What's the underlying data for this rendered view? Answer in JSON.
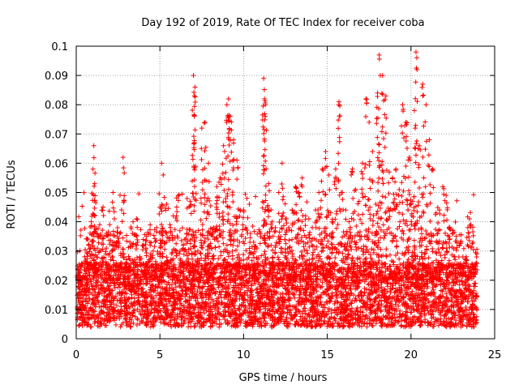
{
  "chart_data": {
    "type": "scatter",
    "title": "Day 192 of 2019, Rate Of TEC Index for receiver coba",
    "xlabel": "GPS time / hours",
    "ylabel": "ROTI / TECUs",
    "xlim": [
      0,
      25
    ],
    "ylim": [
      0,
      0.1
    ],
    "x_ticks": [
      "0",
      "5",
      "10",
      "15",
      "20",
      "25"
    ],
    "y_ticks": [
      "0",
      "0.01",
      "0.02",
      "0.03",
      "0.04",
      "0.05",
      "0.06",
      "0.07",
      "0.08",
      "0.09",
      "0.1"
    ],
    "grid": true,
    "marker": "+",
    "color": "#ff0000",
    "series": [
      {
        "x": [
          0.1,
          0.3,
          0.5,
          0.7,
          0.9,
          1.0,
          1.05,
          1.1,
          1.2,
          1.4,
          1.6,
          1.8,
          2.0,
          2.2,
          2.4,
          2.6,
          2.8,
          3.0,
          3.2,
          3.4,
          3.6,
          3.8,
          4.0,
          4.2,
          4.4,
          4.6,
          4.8,
          5.0,
          5.1,
          5.2,
          5.4,
          5.6,
          5.8,
          6.0,
          6.2,
          6.4,
          6.6,
          6.8,
          7.0,
          7.05,
          7.1,
          7.3,
          7.5,
          7.7,
          7.9,
          8.0,
          8.2,
          8.4,
          8.6,
          8.8,
          9.0,
          9.1,
          9.2,
          9.4,
          9.6,
          9.8,
          10.0,
          10.2,
          10.4,
          10.6,
          10.8,
          11.0,
          11.2,
          11.25,
          11.3,
          11.5,
          11.7,
          11.9,
          12.1,
          12.3,
          12.5,
          12.7,
          12.9,
          13.1,
          13.3,
          13.5,
          13.7,
          13.9,
          14.1,
          14.3,
          14.5,
          14.7,
          14.9,
          15.1,
          15.3,
          15.5,
          15.7,
          15.9,
          16.1,
          16.3,
          16.5,
          16.7,
          16.9,
          17.1,
          17.3,
          17.5,
          17.7,
          17.9,
          18.0,
          18.1,
          18.3,
          18.5,
          18.7,
          18.9,
          19.1,
          19.3,
          19.5,
          19.7,
          19.9,
          20.1,
          20.2,
          20.3,
          20.5,
          20.7,
          20.9,
          21.1,
          21.3,
          21.5,
          21.7,
          21.9,
          22.1,
          22.3,
          22.5,
          22.7,
          22.9,
          23.1,
          23.3,
          23.5,
          23.7,
          23.9
        ],
        "y": [
          0.02,
          0.016,
          0.028,
          0.034,
          0.04,
          0.058,
          0.066,
          0.053,
          0.036,
          0.039,
          0.045,
          0.031,
          0.039,
          0.05,
          0.033,
          0.036,
          0.062,
          0.027,
          0.033,
          0.04,
          0.041,
          0.028,
          0.032,
          0.035,
          0.033,
          0.03,
          0.038,
          0.045,
          0.06,
          0.056,
          0.046,
          0.039,
          0.042,
          0.045,
          0.03,
          0.032,
          0.036,
          0.047,
          0.09,
          0.076,
          0.086,
          0.037,
          0.072,
          0.074,
          0.06,
          0.036,
          0.038,
          0.052,
          0.055,
          0.066,
          0.08,
          0.082,
          0.076,
          0.068,
          0.061,
          0.044,
          0.044,
          0.048,
          0.036,
          0.033,
          0.031,
          0.036,
          0.089,
          0.082,
          0.076,
          0.053,
          0.04,
          0.038,
          0.05,
          0.06,
          0.041,
          0.038,
          0.044,
          0.052,
          0.05,
          0.055,
          0.042,
          0.041,
          0.038,
          0.044,
          0.05,
          0.058,
          0.064,
          0.056,
          0.04,
          0.058,
          0.081,
          0.05,
          0.044,
          0.04,
          0.058,
          0.051,
          0.047,
          0.06,
          0.082,
          0.074,
          0.064,
          0.046,
          0.084,
          0.097,
          0.09,
          0.083,
          0.057,
          0.055,
          0.058,
          0.051,
          0.08,
          0.074,
          0.062,
          0.047,
          0.078,
          0.098,
          0.066,
          0.087,
          0.08,
          0.068,
          0.058,
          0.043,
          0.044,
          0.052,
          0.049,
          0.038,
          0.036,
          0.035,
          0.032,
          0.028,
          0.028,
          0.041,
          0.033,
          0.026
        ],
        "baseline_note": "dense background of points between ~0.002 and ~0.03 across all hours"
      }
    ]
  }
}
